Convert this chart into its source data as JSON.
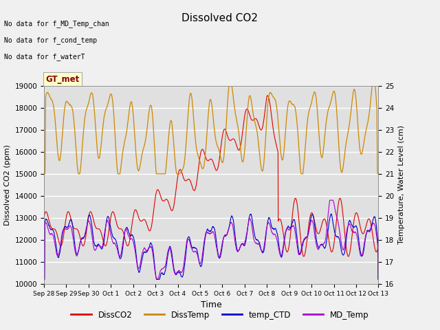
{
  "title": "Dissolved CO2",
  "xlabel": "Time",
  "ylabel_left": "Dissolved CO2 (ppm)",
  "ylabel_right": "Temperature, Water Level (cm)",
  "ylim_left": [
    10000,
    19000
  ],
  "ylim_right": [
    16.0,
    25.0
  ],
  "xtick_labels": [
    "Sep 28",
    "Sep 29",
    "Sep 30",
    "Oct 1",
    "Oct 2",
    "Oct 3",
    "Oct 4",
    "Oct 5",
    "Oct 6",
    "Oct 7",
    "Oct 8",
    "Oct 9",
    "Oct 10",
    "Oct 11",
    "Oct 12",
    "Oct 13"
  ],
  "legend_labels": [
    "DissCO2",
    "DissTemp",
    "temp_CTD",
    "MD_Temp"
  ],
  "legend_colors": [
    "#dd0000",
    "#cc8800",
    "#0000cc",
    "#aa00cc"
  ],
  "no_data_text": [
    "No data for f_MD_Temp_chan",
    "No data for f_cond_temp",
    "No data for f_waterT"
  ],
  "annotation_text": "GT_met",
  "annotation_color": "#8b0000",
  "annotation_bg": "#ffffcc",
  "plot_bg_color": "#e0e0e0",
  "fig_bg_color": "#f0f0f0",
  "grid_color": "#ffffff",
  "DissCO2_color": "#dd0000",
  "DissTemp_color": "#cc8800",
  "temp_CTD_color": "#0000cc",
  "MD_Temp_color": "#aa00cc",
  "yticks_left": [
    10000,
    11000,
    12000,
    13000,
    14000,
    15000,
    16000,
    17000,
    18000,
    19000
  ],
  "yticks_right": [
    16.0,
    17.0,
    18.0,
    19.0,
    20.0,
    21.0,
    22.0,
    23.0,
    24.0,
    25.0
  ]
}
